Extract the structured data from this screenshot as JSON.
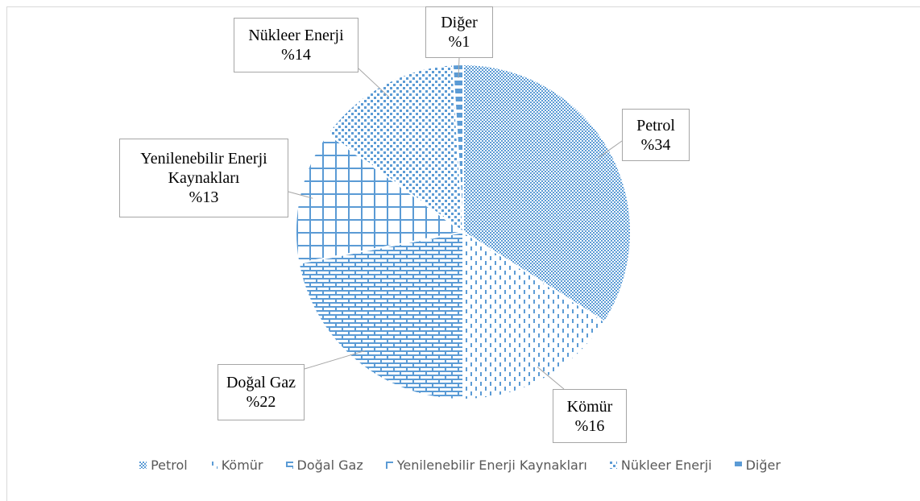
{
  "chart_data": {
    "type": "pie",
    "categories": [
      "Petrol",
      "Kömür",
      "Doğal Gaz",
      "Yenilenebilir Enerji Kaynakları",
      "Nükleer Enerji",
      "Diğer"
    ],
    "values": [
      34,
      16,
      22,
      13,
      14,
      1
    ],
    "value_labels": [
      "%34",
      "%16",
      "%22",
      "%13",
      "%14",
      "%1"
    ],
    "color": "#5b9bd5",
    "legend": "bottom"
  }
}
